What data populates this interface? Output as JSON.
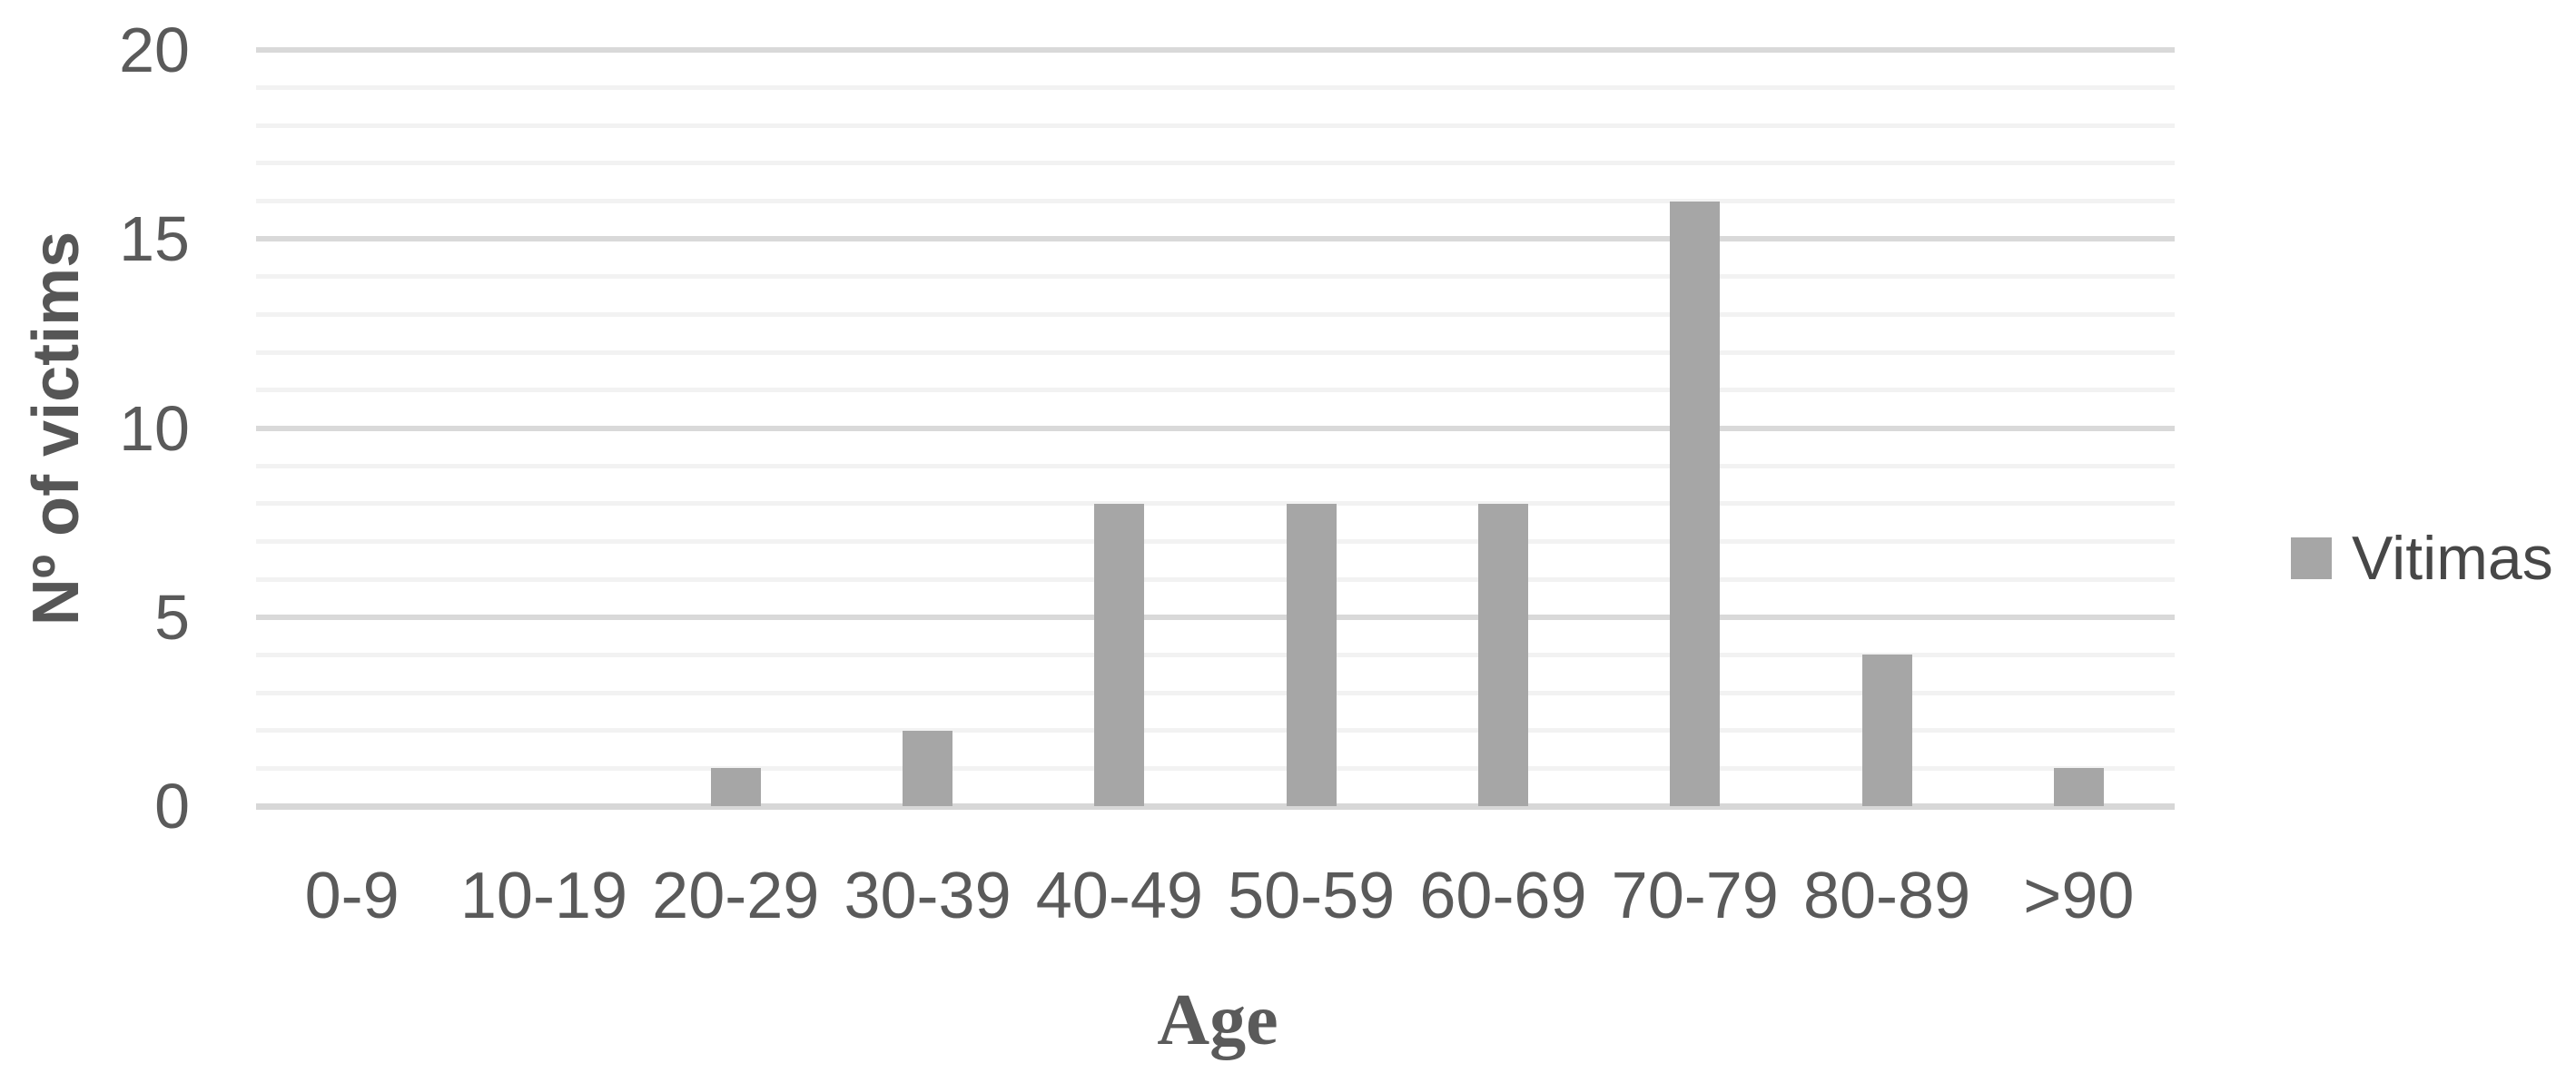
{
  "figure": {
    "background": "#ffffff"
  },
  "chart_data": {
    "type": "bar",
    "title": "",
    "categories": [
      "0-9",
      "10-19",
      "20-29",
      "30-39",
      "40-49",
      "50-59",
      "60-69",
      "70-79",
      "80-89",
      ">90"
    ],
    "series": [
      {
        "name": "Vitimas",
        "values": [
          0,
          0,
          1,
          2,
          8,
          8,
          8,
          16,
          4,
          1
        ]
      }
    ],
    "xlabel": "Age",
    "ylabel": "Nº of victims",
    "ylim": [
      0,
      20
    ],
    "y_major_ticks": [
      0,
      5,
      10,
      15,
      20
    ],
    "y_minor_step": 1,
    "grid": {
      "horizontal_minor": true,
      "horizontal_major": true,
      "vertical": false
    },
    "legend": {
      "position": "right",
      "entries": [
        "Vitimas"
      ]
    },
    "colors": {
      "bar": "#a6a6a6",
      "legend_swatch": "#a6a6a6",
      "minor_gridline": "#f2f2f2",
      "major_gridline": "#d9d9d9",
      "axis_line": "#d7d7d7",
      "tick_text": "#5a5a5a",
      "axis_title_text": "#565656",
      "legend_text": "#474747"
    }
  }
}
